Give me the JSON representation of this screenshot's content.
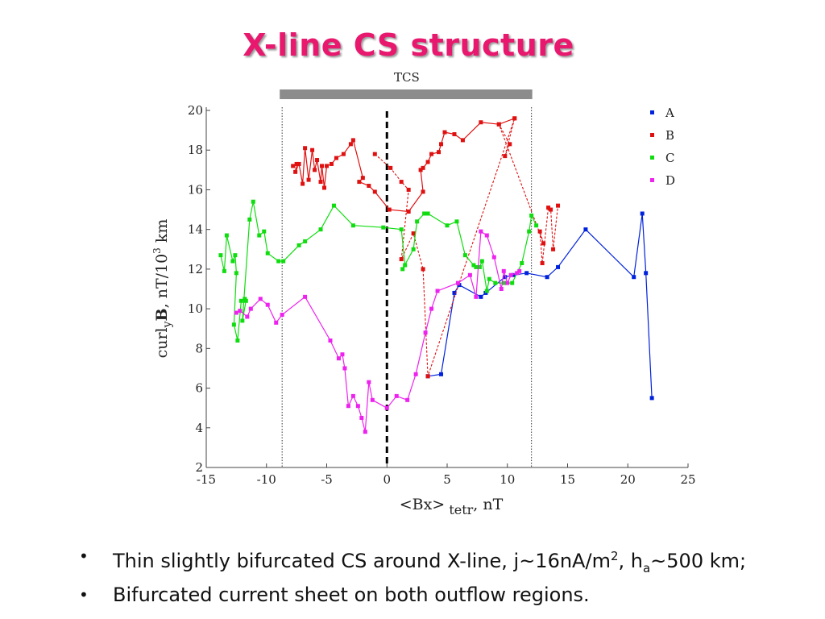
{
  "slide": {
    "title": "X-line CS structure"
  },
  "chart_data": {
    "type": "line",
    "title": "",
    "xlabel_main": "<Bx>",
    "xlabel_sub": "tetr",
    "xlabel_after": ", nT",
    "ylabel_prefix": "curl",
    "ylabel_sub": "y",
    "ylabel_bold": "B",
    "ylabel_mid": ", nT/10",
    "ylabel_sup": "3",
    "ylabel_after": " km",
    "xlim": [
      -15,
      25
    ],
    "ylim": [
      2,
      20
    ],
    "x_ticks": [
      "-15",
      "-10",
      "-5",
      "0",
      "5",
      "10",
      "15",
      "20",
      "25"
    ],
    "y_ticks": [
      "2",
      "4",
      "6",
      "8",
      "10",
      "12",
      "14",
      "16",
      "18",
      "20"
    ],
    "grid": false,
    "legend_position": "top-right",
    "tcs_band": {
      "label": "TCS",
      "x_start": -8.7,
      "x_end": 12
    },
    "reference_lines": {
      "dotted_x": [
        -8.7,
        12
      ],
      "dashed_x": 0
    },
    "series": [
      {
        "name": "A",
        "color": "#0022dd",
        "points": [
          [
            3.4,
            6.6
          ],
          [
            4.5,
            6.7
          ],
          [
            5.6,
            10.8
          ],
          [
            6,
            11.2
          ],
          [
            7.8,
            10.6
          ],
          [
            8.2,
            10.8
          ],
          [
            9.8,
            11.6
          ],
          [
            10.5,
            11.7
          ],
          [
            11.6,
            11.8
          ],
          [
            13.3,
            11.6
          ],
          [
            14.2,
            12.1
          ],
          [
            16.5,
            14
          ],
          [
            20.5,
            11.6
          ],
          [
            21.2,
            14.8
          ],
          [
            21.5,
            11.8
          ],
          [
            22,
            5.5
          ]
        ]
      },
      {
        "name": "B",
        "color": "#e01010",
        "points_solid": [
          [
            -7.8,
            17.2
          ],
          [
            -7.5,
            17.3
          ],
          [
            -7.6,
            16.9
          ],
          [
            -7.3,
            17.3
          ],
          [
            -7,
            16.3
          ],
          [
            -6.8,
            18.1
          ],
          [
            -6.5,
            16.5
          ],
          [
            -6.2,
            18
          ],
          [
            -6,
            17
          ],
          [
            -5.8,
            17.5
          ],
          [
            -5.5,
            16.4
          ],
          [
            -5.4,
            17.2
          ],
          [
            -5.2,
            16.1
          ],
          [
            -5,
            17.2
          ],
          [
            -4.6,
            17.3
          ],
          [
            -4.2,
            17.6
          ],
          [
            -3.6,
            17.8
          ],
          [
            -3,
            18.3
          ],
          [
            -2.8,
            18.5
          ],
          [
            -2,
            16.6
          ],
          [
            -2.3,
            16.4
          ],
          [
            -1.5,
            16.2
          ],
          [
            -1,
            15.9
          ],
          [
            0.2,
            15
          ],
          [
            1.8,
            14.9
          ],
          [
            3,
            15.9
          ],
          [
            2.8,
            17
          ],
          [
            3,
            17.1
          ],
          [
            3.4,
            17.4
          ],
          [
            3.7,
            17.8
          ],
          [
            4.3,
            17.9
          ],
          [
            4.5,
            18.3
          ],
          [
            4.8,
            18.9
          ],
          [
            5.6,
            18.8
          ],
          [
            6.3,
            18.5
          ],
          [
            7.8,
            19.4
          ],
          [
            9.3,
            19.3
          ],
          [
            10.6,
            19.6
          ]
        ],
        "points_dotted": [
          [
            -1,
            17.8
          ],
          [
            0.3,
            17.1
          ],
          [
            1.2,
            16.4
          ],
          [
            1.8,
            16
          ],
          [
            1.2,
            12.5
          ],
          [
            2.2,
            13.8
          ],
          [
            3,
            12
          ],
          [
            3.4,
            6.6
          ],
          [
            10.6,
            19.6
          ],
          [
            9.8,
            17.7
          ],
          [
            10.2,
            18.3
          ],
          [
            9.3,
            19.3
          ],
          [
            13,
            13.3
          ],
          [
            12.7,
            13.9
          ],
          [
            12.9,
            12.3
          ],
          [
            13.4,
            15.1
          ],
          [
            13.6,
            15
          ],
          [
            13.8,
            13
          ],
          [
            14.2,
            15.2
          ]
        ]
      },
      {
        "name": "C",
        "color": "#10dd10",
        "points": [
          [
            -13.8,
            12.7
          ],
          [
            -13.5,
            11.9
          ],
          [
            -13.3,
            13.7
          ],
          [
            -12.8,
            12.4
          ],
          [
            -12.6,
            12.7
          ],
          [
            -12.5,
            11.8
          ],
          [
            -12.7,
            9.2
          ],
          [
            -12.4,
            8.4
          ],
          [
            -12.1,
            10.4
          ],
          [
            -11.8,
            10.5
          ],
          [
            -11.7,
            10.4
          ],
          [
            -12,
            9.4
          ],
          [
            -11.4,
            14.5
          ],
          [
            -11.1,
            15.4
          ],
          [
            -10.6,
            13.7
          ],
          [
            -10.2,
            13.9
          ],
          [
            -9.9,
            12.8
          ],
          [
            -9,
            12.4
          ],
          [
            -8.6,
            12.4
          ],
          [
            -7.3,
            13.2
          ],
          [
            -6.8,
            13.4
          ],
          [
            -5.5,
            14
          ],
          [
            -4.4,
            15.2
          ],
          [
            -2.8,
            14.2
          ],
          [
            -0.3,
            14.1
          ],
          [
            1.2,
            14
          ],
          [
            1.5,
            12.2
          ],
          [
            1.3,
            12
          ],
          [
            2.2,
            13
          ],
          [
            2.5,
            14.4
          ],
          [
            3.1,
            14.8
          ],
          [
            3.4,
            14.8
          ],
          [
            5,
            14.2
          ],
          [
            5.8,
            14.4
          ],
          [
            6.5,
            12.7
          ],
          [
            7.2,
            12.2
          ],
          [
            7.4,
            12.1
          ],
          [
            7.7,
            12.1
          ],
          [
            7.9,
            12.4
          ],
          [
            8.3,
            10.9
          ],
          [
            8.5,
            11.5
          ],
          [
            9,
            11.3
          ],
          [
            9.7,
            11.3
          ],
          [
            10.4,
            11.3
          ],
          [
            11.2,
            12.3
          ],
          [
            11.8,
            13.9
          ],
          [
            12,
            14.7
          ],
          [
            12.4,
            14.2
          ]
        ]
      },
      {
        "name": "D",
        "color": "#ee22ee",
        "points": [
          [
            -12.5,
            9.8
          ],
          [
            -12.2,
            9.9
          ],
          [
            -11.6,
            9.6
          ],
          [
            -11.3,
            10
          ],
          [
            -10.5,
            10.5
          ],
          [
            -9.9,
            10.2
          ],
          [
            -9.2,
            9.3
          ],
          [
            -8.7,
            9.7
          ],
          [
            -6.8,
            10.6
          ],
          [
            -4.7,
            8.4
          ],
          [
            -4,
            7.5
          ],
          [
            -3.7,
            7.7
          ],
          [
            -3.5,
            7
          ],
          [
            -3.2,
            5.1
          ],
          [
            -2.8,
            5.6
          ],
          [
            -2.4,
            5.1
          ],
          [
            -2.1,
            4.5
          ],
          [
            -1.8,
            3.8
          ],
          [
            -1.5,
            6.3
          ],
          [
            -1.2,
            5.4
          ],
          [
            0,
            5
          ],
          [
            0.8,
            5.6
          ],
          [
            1.7,
            5.4
          ],
          [
            2.4,
            6.7
          ],
          [
            3.2,
            8.8
          ],
          [
            3.7,
            10
          ],
          [
            4.2,
            10.9
          ],
          [
            5.9,
            11.3
          ],
          [
            6.9,
            11.7
          ],
          [
            7.4,
            10.6
          ],
          [
            7.8,
            13.9
          ],
          [
            8.3,
            13.7
          ],
          [
            8.9,
            12.6
          ],
          [
            9.5,
            11
          ],
          [
            9.7,
            11.9
          ],
          [
            10,
            11.3
          ],
          [
            10.3,
            11.7
          ],
          [
            10.8,
            11.8
          ],
          [
            11,
            11.9
          ]
        ]
      }
    ]
  },
  "bullets": [
    {
      "pre": "Thin slightly bifurcated CS around X-line, j~16nA/m",
      "sup": "2",
      "mid": ", h",
      "sub": "a",
      "post": "~500 km;"
    },
    {
      "pre": "Bifurcated current sheet on both outflow regions."
    }
  ],
  "bullet_symbol": "•"
}
